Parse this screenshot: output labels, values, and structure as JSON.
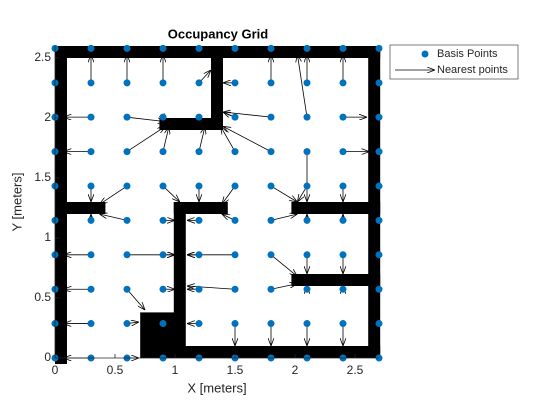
{
  "chart_data": {
    "type": "occupancy",
    "title": "Occupancy Grid",
    "xlabel": "X [meters]",
    "ylabel": "Y [meters]",
    "xlim": [
      0,
      2.7
    ],
    "ylim": [
      0,
      2.6
    ],
    "xticks": [
      0,
      0.5,
      1,
      1.5,
      2,
      2.5
    ],
    "yticks": [
      0,
      0.5,
      1,
      1.5,
      2,
      2.5
    ],
    "wall_color": "#000000",
    "walls": [
      [
        0.05,
        2.55,
        2.66,
        2.55
      ],
      [
        0.05,
        0,
        0.05,
        2.55
      ],
      [
        2.66,
        0.05,
        2.66,
        2.55
      ],
      [
        1.04,
        0.05,
        2.66,
        0.05
      ],
      [
        1.35,
        2.55,
        1.35,
        1.95
      ],
      [
        0.92,
        1.95,
        1.35,
        1.95
      ],
      [
        0.05,
        1.25,
        0.37,
        1.25
      ],
      [
        1.04,
        0.05,
        1.04,
        1.25
      ],
      [
        1.04,
        1.25,
        1.39,
        1.25
      ],
      [
        2.02,
        1.25,
        2.66,
        1.25
      ],
      [
        2.02,
        0.65,
        2.66,
        0.65
      ]
    ],
    "filled_regions": [
      [
        0.71,
        0,
        1.04,
        0.38
      ]
    ],
    "basis": {
      "name": "Basis Points",
      "color": "#0072bd",
      "grid_x": [
        0,
        0.3,
        0.6,
        0.9,
        1.2,
        1.5,
        1.8,
        2.1,
        2.4,
        2.7
      ],
      "grid_y": [
        0,
        0.287,
        0.573,
        0.86,
        1.147,
        1.433,
        1.72,
        2.007,
        2.293,
        2.58
      ]
    },
    "arrows": {
      "name": "Nearest points",
      "color": "#000000",
      "x": [
        0.3,
        0.6,
        0.9,
        1.2,
        1.5,
        1.8,
        2.1,
        2.4,
        0.3,
        0.6,
        0.9,
        1.5,
        1.8,
        2.1,
        2.4,
        0.3,
        0.6,
        0.9,
        1.2,
        1.5,
        1.8,
        2.1,
        2.4,
        0.3,
        0.6,
        0.9,
        1.2,
        1.5,
        1.8,
        2.1,
        2.4,
        0.3,
        0.6,
        0.9,
        1.2,
        1.5,
        1.8,
        2.1,
        2.4,
        0.3,
        0.6,
        0.9,
        1.2,
        1.5,
        1.8,
        2.1,
        2.4,
        0.3,
        0.6,
        0.9,
        1.2,
        1.5,
        1.8,
        2.1,
        2.4,
        0.3,
        0.6,
        1.2,
        1.5,
        1.8,
        2.1,
        2.4,
        0.3,
        0.6
      ],
      "y": [
        2.293,
        2.293,
        2.293,
        2.293,
        2.293,
        2.293,
        2.293,
        2.293,
        2.007,
        2.007,
        2.007,
        2.007,
        2.007,
        2.007,
        2.007,
        1.72,
        1.72,
        1.72,
        1.72,
        1.72,
        1.72,
        1.72,
        1.72,
        1.433,
        1.433,
        1.433,
        1.433,
        1.433,
        1.433,
        1.433,
        1.433,
        1.147,
        1.147,
        1.147,
        1.147,
        1.147,
        1.147,
        1.147,
        1.147,
        0.86,
        0.86,
        0.86,
        0.86,
        0.86,
        0.86,
        0.86,
        0.86,
        0.573,
        0.573,
        0.573,
        0.573,
        0.573,
        0.573,
        0.573,
        0.573,
        0.287,
        0.287,
        0.287,
        0.287,
        0.287,
        0.287,
        0.287,
        0,
        0
      ],
      "x_end": [
        0.3,
        0.6,
        0.9,
        1.3,
        1.4,
        1.8,
        2.1,
        2.4,
        0.07,
        0.92,
        0.92,
        1.4,
        1.4,
        2.02,
        2.6,
        0.07,
        0.92,
        0.95,
        1.25,
        1.38,
        1.4,
        2.1,
        2.62,
        0.3,
        0.37,
        1.04,
        1.2,
        1.39,
        2.02,
        2.02,
        2.4,
        0.3,
        0.37,
        1.0,
        1.1,
        1.39,
        2.02,
        2.1,
        2.4,
        0.07,
        1.0,
        1.0,
        1.1,
        1.1,
        2.02,
        2.1,
        2.4,
        0.07,
        0.75,
        1.0,
        1.1,
        1.1,
        2.02,
        2.1,
        2.4,
        0.07,
        0.7,
        1.1,
        1.5,
        1.8,
        2.1,
        2.4,
        0.07,
        0.7
      ],
      "y_end": [
        2.53,
        2.53,
        2.53,
        2.4,
        2.293,
        2.53,
        2.53,
        2.53,
        2.007,
        1.97,
        1.97,
        2.05,
        2.05,
        2.53,
        2.007,
        1.72,
        1.93,
        1.93,
        1.93,
        1.93,
        1.93,
        1.3,
        1.72,
        1.3,
        1.28,
        1.3,
        1.3,
        1.28,
        1.3,
        1.3,
        1.3,
        1.2,
        1.2,
        1.147,
        1.147,
        1.2,
        1.2,
        1.2,
        1.2,
        0.86,
        0.86,
        0.86,
        0.86,
        0.86,
        0.68,
        0.7,
        0.7,
        0.573,
        0.4,
        0.573,
        0.573,
        0.6,
        0.62,
        0.6,
        0.6,
        0.287,
        0.3,
        0.287,
        0.1,
        0.1,
        0.1,
        0.1,
        0,
        0
      ]
    }
  }
}
